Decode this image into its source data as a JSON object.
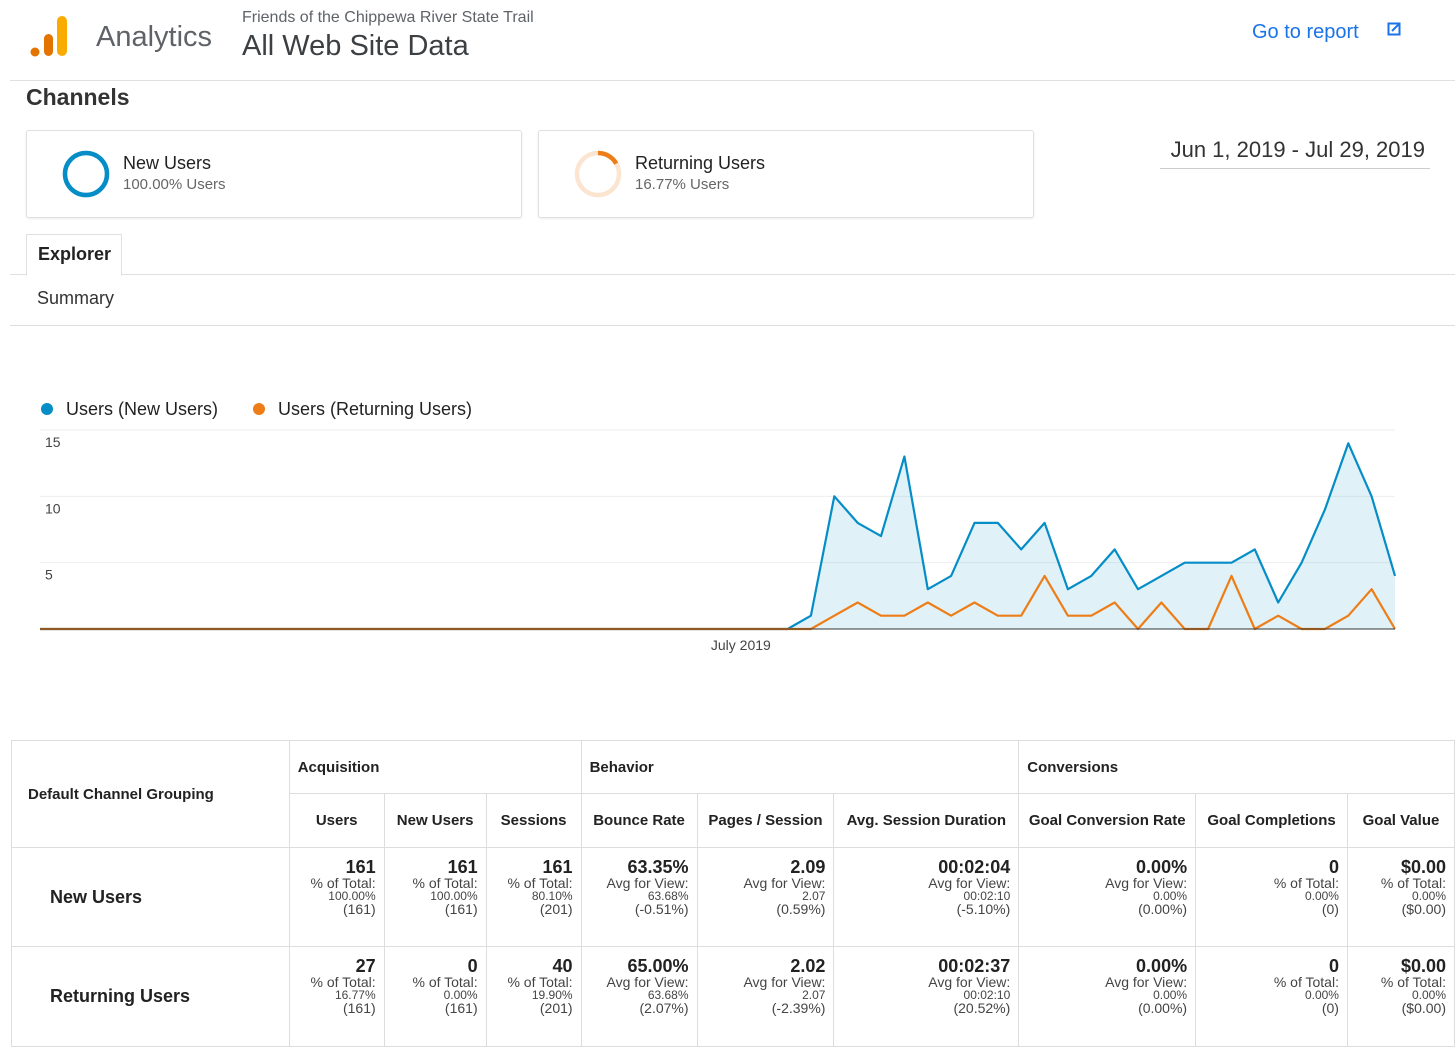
{
  "header": {
    "product": "Analytics",
    "account": "Friends of the Chippewa River State Trail",
    "view": "All Web Site Data",
    "report_link": "Go to report"
  },
  "section_title": "Channels",
  "segments": [
    {
      "name": "New Users",
      "value": 100,
      "value_label": "100.00% Users",
      "color": "#058dc7"
    },
    {
      "name": "Returning Users",
      "value": 16.77,
      "value_label": "16.77% Users",
      "color": "#ed7e17"
    }
  ],
  "date_range": "Jun 1, 2019 - Jul 29, 2019",
  "tab": "Explorer",
  "subtab": "Summary",
  "chart_data": {
    "type": "area",
    "categories": [
      null,
      null,
      null,
      null,
      null,
      null,
      null,
      null,
      null,
      null,
      null,
      null,
      null,
      null,
      null,
      null,
      null,
      null,
      null,
      null,
      null,
      null,
      null,
      null,
      null,
      null,
      null,
      null,
      null,
      null,
      "July 2019",
      null,
      null,
      null,
      null,
      null,
      null,
      null,
      null,
      null,
      null,
      null,
      null,
      null,
      null,
      null,
      null,
      null,
      null,
      null,
      null,
      null,
      null,
      null,
      null,
      null,
      null,
      null,
      null
    ],
    "series": [
      {
        "name": "Users (New Users)",
        "color": "#058dc7",
        "fill": true,
        "values": [
          0,
          0,
          0,
          0,
          0,
          0,
          0,
          0,
          0,
          0,
          0,
          0,
          0,
          0,
          0,
          0,
          0,
          0,
          0,
          0,
          0,
          0,
          0,
          0,
          0,
          0,
          0,
          0,
          0,
          0,
          0,
          0,
          0,
          1,
          10,
          8,
          7,
          13,
          3,
          4,
          8,
          8,
          6,
          8,
          3,
          4,
          6,
          3,
          4,
          5,
          5,
          5,
          6,
          2,
          5,
          9,
          14,
          10,
          4
        ]
      },
      {
        "name": "Users (Returning Users)",
        "color": "#ed7e17",
        "fill": false,
        "values": [
          0,
          0,
          0,
          0,
          0,
          0,
          0,
          0,
          0,
          0,
          0,
          0,
          0,
          0,
          0,
          0,
          0,
          0,
          0,
          0,
          0,
          0,
          0,
          0,
          0,
          0,
          0,
          0,
          0,
          0,
          0,
          0,
          0,
          0,
          1,
          2,
          1,
          1,
          2,
          1,
          2,
          1,
          1,
          4,
          1,
          1,
          2,
          0,
          2,
          0,
          0,
          4,
          0,
          1,
          0,
          0,
          1,
          3,
          0
        ]
      }
    ],
    "ylim": [
      0,
      15
    ],
    "yticks": [
      5,
      10,
      15
    ],
    "grid": true,
    "legend": "top"
  },
  "table": {
    "corner": "Default Channel Grouping",
    "groups": [
      {
        "name": "Acquisition",
        "span": 3
      },
      {
        "name": "Behavior",
        "span": 3
      },
      {
        "name": "Conversions",
        "span": 3
      }
    ],
    "columns": [
      "Users",
      "New Users",
      "Sessions",
      "Bounce Rate",
      "Pages / Session",
      "Avg. Session Duration",
      "Goal Conversion Rate",
      "Goal Completions",
      "Goal Value"
    ],
    "rows": [
      {
        "label": "New Users",
        "cells": [
          [
            "161",
            "% of Total:",
            "100.00%",
            "(161)"
          ],
          [
            "161",
            "% of Total:",
            "100.00%",
            "(161)"
          ],
          [
            "161",
            "% of Total:",
            "80.10%",
            "(201)"
          ],
          [
            "63.35%",
            "Avg for View:",
            "63.68%",
            "(-0.51%)"
          ],
          [
            "2.09",
            "Avg for View:",
            "2.07",
            "(0.59%)"
          ],
          [
            "00:02:04",
            "Avg for View:",
            "00:02:10",
            "(-5.10%)"
          ],
          [
            "0.00%",
            "Avg for View:",
            "0.00%",
            "(0.00%)"
          ],
          [
            "0",
            "% of Total:",
            "0.00%",
            "(0)"
          ],
          [
            "$0.00",
            "% of Total:",
            "0.00%",
            "($0.00)"
          ]
        ]
      },
      {
        "label": "Returning Users",
        "cells": [
          [
            "27",
            "% of Total:",
            "16.77%",
            "(161)"
          ],
          [
            "0",
            "% of Total:",
            "0.00%",
            "(161)"
          ],
          [
            "40",
            "% of Total:",
            "19.90%",
            "(201)"
          ],
          [
            "65.00%",
            "Avg for View:",
            "63.68%",
            "(2.07%)"
          ],
          [
            "2.02",
            "Avg for View:",
            "2.07",
            "(-2.39%)"
          ],
          [
            "00:02:37",
            "Avg for View:",
            "00:02:10",
            "(20.52%)"
          ],
          [
            "0.00%",
            "Avg for View:",
            "0.00%",
            "(0.00%)"
          ],
          [
            "0",
            "% of Total:",
            "0.00%",
            "(0)"
          ],
          [
            "$0.00",
            "% of Total:",
            "0.00%",
            "($0.00)"
          ]
        ]
      }
    ]
  }
}
